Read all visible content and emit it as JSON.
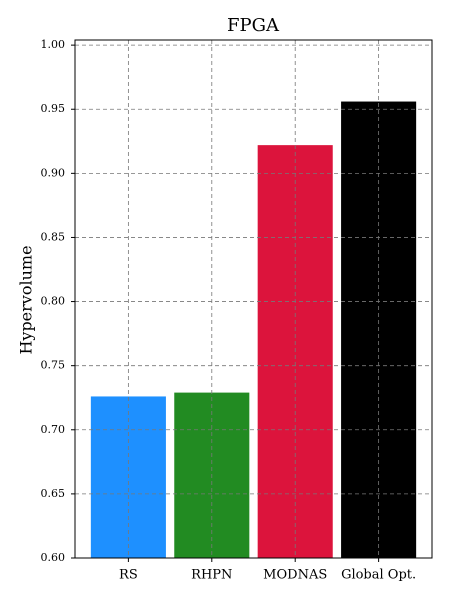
{
  "chart_data": {
    "type": "bar",
    "title": "FPGA",
    "y_label": "Hypervolume",
    "categories": [
      "RS",
      "RHPN",
      "MODNAS",
      "Global Opt."
    ],
    "values": [
      0.726,
      0.729,
      0.922,
      0.956
    ],
    "colors": [
      "#1e90ff",
      "#228b22",
      "#dc143c",
      "#000000"
    ],
    "ylim": [
      0.6,
      1.004
    ],
    "yticks": [
      {
        "value": 0.6,
        "label": "0.60"
      },
      {
        "value": 0.65,
        "label": "0.65"
      },
      {
        "value": 0.7,
        "label": "0.70"
      },
      {
        "value": 0.75,
        "label": "0.75"
      },
      {
        "value": 0.8,
        "label": "0.80"
      },
      {
        "value": 0.85,
        "label": "0.85"
      },
      {
        "value": 0.9,
        "label": "0.90"
      },
      {
        "value": 0.95,
        "label": "0.95"
      },
      {
        "value": 1.0,
        "label": "1.00"
      }
    ],
    "grid": true
  }
}
